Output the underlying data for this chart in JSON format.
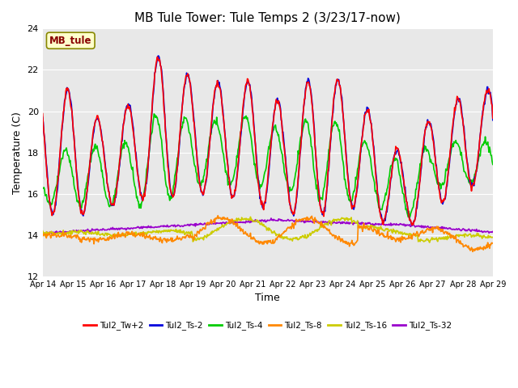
{
  "title": "MB Tule Tower: Tule Temps 2 (3/23/17-now)",
  "xlabel": "Time",
  "ylabel": "Temperature (C)",
  "ylim": [
    12,
    24
  ],
  "yticks": [
    12,
    14,
    16,
    18,
    20,
    22,
    24
  ],
  "x_tick_labels": [
    "Apr 14",
    "Apr 15",
    "Apr 16",
    "Apr 17",
    "Apr 18",
    "Apr 19",
    "Apr 20",
    "Apr 21",
    "Apr 22",
    "Apr 23",
    "Apr 24",
    "Apr 25",
    "Apr 26",
    "Apr 27",
    "Apr 28",
    "Apr 29"
  ],
  "annotation_text": "MB_tule",
  "annotation_box_color": "#ffffcc",
  "annotation_text_color": "#880000",
  "annotation_edge_color": "#888800",
  "fig_bg_color": "#ffffff",
  "plot_bg_color": "#e8e8e8",
  "grid_color": "#ffffff",
  "title_fontsize": 11,
  "axis_fontsize": 9,
  "tick_fontsize": 8,
  "lines": {
    "Tul2_Tw+2": {
      "color": "#ff0000",
      "lw": 1.2
    },
    "Tul2_Ts-2": {
      "color": "#0000dd",
      "lw": 1.2
    },
    "Tul2_Ts-4": {
      "color": "#00cc00",
      "lw": 1.2
    },
    "Tul2_Ts-8": {
      "color": "#ff8800",
      "lw": 1.2
    },
    "Tul2_Ts-16": {
      "color": "#cccc00",
      "lw": 1.2
    },
    "Tul2_Ts-32": {
      "color": "#9900cc",
      "lw": 1.2
    }
  },
  "legend_labels": [
    "Tul2_Tw+2",
    "Tul2_Ts-2",
    "Tul2_Ts-4",
    "Tul2_Ts-8",
    "Tul2_Ts-16",
    "Tul2_Ts-32"
  ]
}
